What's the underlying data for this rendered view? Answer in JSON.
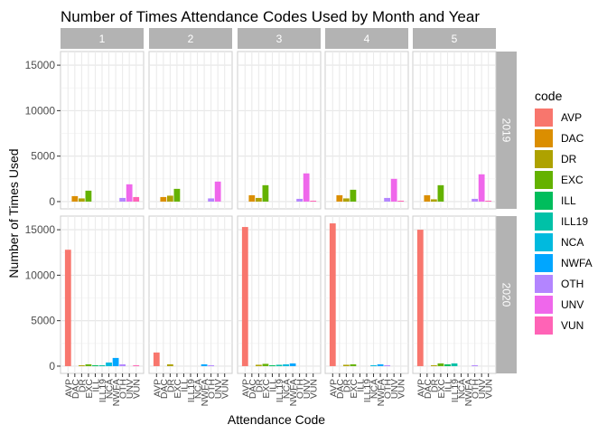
{
  "chart_data": {
    "type": "bar",
    "title": "Number of Times Attendance Codes Used by Month and Year",
    "xlabel": "Attendance Code",
    "ylabel": "Number of Times Used",
    "legend_title": "code",
    "legend_position": "right",
    "facet_cols": [
      "1",
      "2",
      "3",
      "4",
      "5"
    ],
    "facet_rows": [
      "2019",
      "2020"
    ],
    "ylim": [
      -800,
      16500
    ],
    "y_ticks": [
      0,
      5000,
      10000,
      15000
    ],
    "grid": true,
    "codes": [
      "AVP",
      "DAC",
      "DR",
      "EXC",
      "ILL",
      "ILL19",
      "NCA",
      "NWFA",
      "OTH",
      "UNV",
      "VUN"
    ],
    "colors": {
      "AVP": "#F8766D",
      "DAC": "#DB8E00",
      "DR": "#AEA200",
      "EXC": "#64B200",
      "ILL": "#00BD5C",
      "ILL19": "#00C1A7",
      "NCA": "#00BADE",
      "NWFA": "#00A6FF",
      "OTH": "#B385FF",
      "UNV": "#EF67EB",
      "VUN": "#FF63B6"
    },
    "panels": [
      {
        "year": "2019",
        "month": "1",
        "values": {
          "DAC": 600,
          "DR": 350,
          "EXC": 1200,
          "OTH": 400,
          "UNV": 1900,
          "VUN": 500
        }
      },
      {
        "year": "2019",
        "month": "2",
        "values": {
          "DAC": 500,
          "DR": 650,
          "EXC": 1400,
          "OTH": 350,
          "UNV": 2200
        }
      },
      {
        "year": "2019",
        "month": "3",
        "values": {
          "DAC": 700,
          "DR": 400,
          "EXC": 1800,
          "OTH": 300,
          "UNV": 3100,
          "VUN": 100
        }
      },
      {
        "year": "2019",
        "month": "4",
        "values": {
          "DAC": 700,
          "DR": 350,
          "EXC": 1300,
          "OTH": 400,
          "UNV": 2500,
          "VUN": 100
        }
      },
      {
        "year": "2019",
        "month": "5",
        "values": {
          "DAC": 700,
          "DR": 250,
          "EXC": 1800,
          "OTH": 300,
          "UNV": 3000,
          "VUN": 100
        }
      },
      {
        "year": "2020",
        "month": "1",
        "values": {
          "AVP": 12800,
          "DR": 100,
          "EXC": 200,
          "ILL": 100,
          "ILL19": 100,
          "NCA": 400,
          "NWFA": 900,
          "OTH": 200,
          "VUN": 100
        }
      },
      {
        "year": "2020",
        "month": "2",
        "values": {
          "AVP": 1500,
          "DR": 200,
          "NWFA": 200,
          "OTH": 100
        }
      },
      {
        "year": "2020",
        "month": "3",
        "values": {
          "AVP": 15300,
          "DR": 150,
          "EXC": 250,
          "ILL": 100,
          "ILL19": 150,
          "NCA": 200,
          "NWFA": 300
        }
      },
      {
        "year": "2020",
        "month": "4",
        "values": {
          "AVP": 15700,
          "DR": 150,
          "EXC": 200,
          "NCA": 100,
          "NWFA": 200,
          "OTH": 100
        }
      },
      {
        "year": "2020",
        "month": "5",
        "values": {
          "AVP": 15000,
          "DR": 100,
          "EXC": 300,
          "ILL": 200,
          "ILL19": 300,
          "OTH": 100
        }
      }
    ]
  }
}
